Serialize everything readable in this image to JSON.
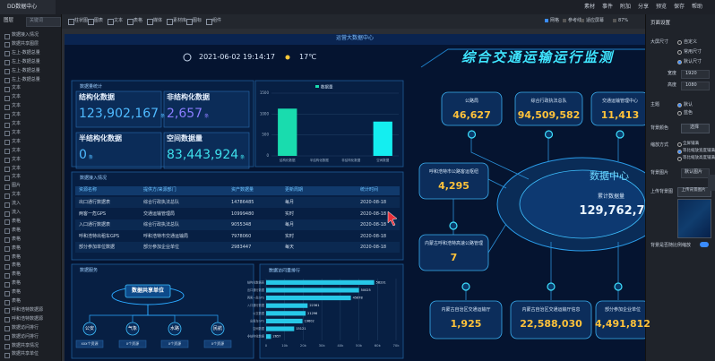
{
  "app": {
    "tab": "DD数据中心",
    "menu": [
      "素材",
      "事件",
      "附加",
      "分享",
      "预览",
      "保存",
      "帮助"
    ],
    "toolbar": [
      "柱状图",
      "图表",
      "文本",
      "表格",
      "媒体",
      "素材库",
      "图标",
      "组件"
    ],
    "view": [
      "网格",
      "参考线",
      "适应屏幕",
      "87%"
    ]
  },
  "layers": {
    "title": "图层",
    "search": "关键词",
    "items": [
      "数据接入情况",
      "数据共享图层",
      "左上-数据总量",
      "左上-数据总量",
      "左上-数据总量",
      "左上-数据总量",
      "文本",
      "文本",
      "文本",
      "文本",
      "文本",
      "文本",
      "文本",
      "文本",
      "文本",
      "文本",
      "文本",
      "图片",
      "文本",
      "流入",
      "流入",
      "表格",
      "表格",
      "表格",
      "表格",
      "表格",
      "表格",
      "表格",
      "表格",
      "表格",
      "表格",
      "呼和浩特数据源",
      "呼和浩特数据源",
      "数据访问排行",
      "数据访问排行",
      "数据共享情况",
      "数据共享单位"
    ]
  },
  "settings": {
    "title": "页面设置",
    "size_label": "大屏尺寸",
    "size_options": [
      "自定义",
      "常用尺寸",
      "默认尺寸"
    ],
    "width_label": "宽度",
    "width": "1920",
    "height_label": "高度",
    "height": "1080",
    "theme_label": "主题",
    "theme_options": [
      "默认",
      "蓝色"
    ],
    "bgcolor_label": "背景颜色",
    "bgcolor_button": "选择",
    "scale_label": "缩放方式",
    "scale_options": [
      "全屏铺满",
      "等比缩放宽度铺满",
      "等比缩放高度铺满"
    ],
    "bgimage_label": "背景图片",
    "bgimage_value": "默认图片",
    "upload_label": "上传背景图",
    "upload_button": "上传背景图片",
    "follow_label": "背景是否随比例缩放"
  },
  "dashboard": {
    "header": "运营大数据中心",
    "datetime": "2021-06-02 19:14:17",
    "weather": "17℃",
    "title": "综合交通运输运行监测",
    "stats": {
      "title": "数据量统计",
      "items": [
        {
          "label": "结构化数据",
          "value": "123,902,167",
          "unit": "条"
        },
        {
          "label": "非结构化数据",
          "value": "2,657",
          "unit": "条"
        },
        {
          "label": "半结构化数据",
          "value": "0",
          "unit": "条"
        },
        {
          "label": "空间数据量",
          "value": "83,443,924",
          "unit": "条"
        }
      ]
    },
    "table": {
      "title": "数据接入情况",
      "columns": [
        "资源名称",
        "提供方/来源部门",
        "资产数据量",
        "更新周期",
        "统计时间"
      ],
      "rows": [
        [
          "出口通行数据表",
          "综合行政执法总队",
          "14786485",
          "每月",
          "2020-08-18"
        ],
        [
          "两客一危GPS",
          "交通运输管理局",
          "10999480",
          "实时",
          "2020-08-18"
        ],
        [
          "入口通行数据表",
          "综合行政执法总队",
          "9055348",
          "每月",
          "2020-08-18"
        ],
        [
          "呼和浩特出租车GPS",
          "呼和浩特市交通运输局",
          "7978060",
          "实时",
          "2020-08-18"
        ],
        [
          "部分参加单位数据",
          "部分参加企业单位",
          "2983447",
          "每天",
          "2020-08-18"
        ]
      ]
    },
    "service": {
      "title": "数据服务",
      "center": "数据共享单位",
      "nodes": [
        {
          "label": "公安",
          "sub": "xxx个资源"
        },
        {
          "label": "气象",
          "sub": "x个资源"
        },
        {
          "label": "水路",
          "sub": "x个资源"
        },
        {
          "label": "民航",
          "sub": "x个资源"
        }
      ]
    },
    "network": {
      "nodes": [
        {
          "label": "公路局",
          "value": "46,627"
        },
        {
          "label": "综合行政执法总队",
          "value": "94,509,582"
        },
        {
          "label": "交通运输管理中心",
          "value": "11,413"
        },
        {
          "label": "呼和浩特市公路客运枢纽",
          "value": "4,295"
        },
        {
          "label": "内蒙古呼和浩特高速公路管理",
          "value": "7"
        },
        {
          "label": "内蒙古自治区交通运输厅",
          "value": "1,925"
        },
        {
          "label": "内蒙古自治区交通运输厅信息",
          "value": "22,588,030"
        },
        {
          "label": "部分参加企业单位",
          "value": "4,491,812"
        }
      ],
      "center": {
        "label": "数据中心",
        "sub": "累计数据量",
        "value": "129,762,7"
      }
    }
  },
  "chart_data": [
    {
      "type": "bar",
      "orientation": "vertical",
      "categories": [
        "结构化数据",
        "半结构化数据",
        "非结构化数据",
        "空间数据"
      ],
      "series": [
        {
          "name": "数据量",
          "color": "#19dcae",
          "values": [
            1130,
            0,
            0,
            820
          ]
        }
      ],
      "colors": [
        "#19dcae",
        "#19dcae",
        "#19dcae",
        "#14eef0"
      ],
      "ylim": [
        0,
        1500
      ],
      "yticks": [
        0,
        500,
        1000,
        1500
      ],
      "grid": true
    },
    {
      "type": "bar",
      "orientation": "horizontal",
      "title": "数据访问量排行",
      "categories": [
        "结构化数据表",
        "出口通行数据",
        "两客一危GPS",
        "入口通行数据",
        "公交数据",
        "出租车GPS",
        "空间数据",
        "非结构化数据"
      ],
      "values": [
        58231,
        50025,
        45678,
        22361,
        21296,
        19602,
        15121,
        2657
      ],
      "color": "#27c8e8",
      "xlim": [
        0,
        70000
      ],
      "xticks": [
        0,
        {
          "value": 10000,
          "label": "10k"
        },
        {
          "value": 20000,
          "label": "20k"
        },
        {
          "value": 30000,
          "label": "30k"
        },
        {
          "value": 40000,
          "label": "40k"
        },
        {
          "value": 50000,
          "label": "50k"
        },
        {
          "value": 60000,
          "label": "60k"
        },
        {
          "value": 70000,
          "label": "70k"
        }
      ],
      "grid": true
    }
  ]
}
